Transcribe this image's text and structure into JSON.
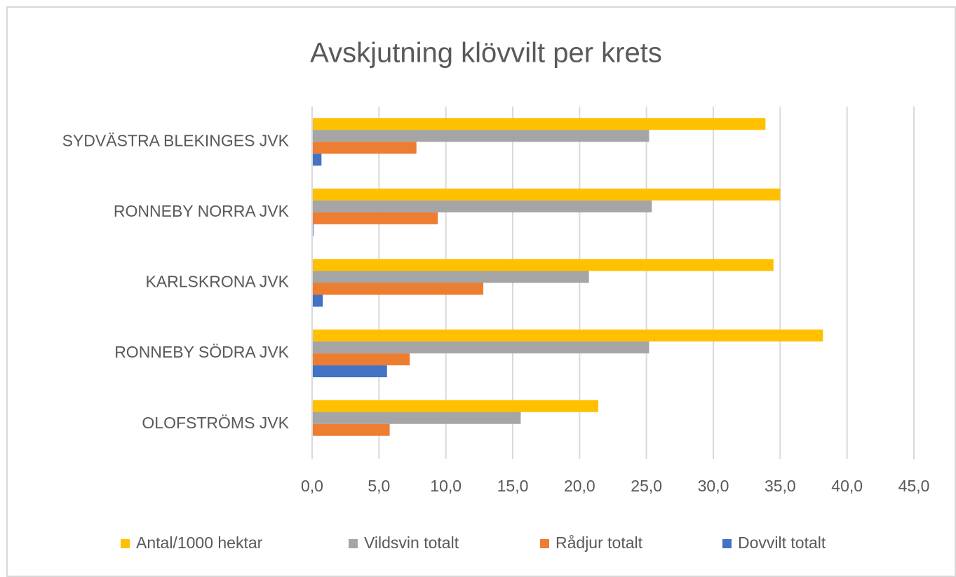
{
  "chart_data": {
    "type": "bar",
    "orientation": "horizontal",
    "title": "Avskjutning klövvilt per krets",
    "categories": [
      "SYDVÄSTRA BLEKINGES JVK",
      "RONNEBY NORRA JVK",
      "KARLSKRONA JVK",
      "RONNEBY SÖDRA JVK",
      "OLOFSTRÖMS JVK"
    ],
    "series": [
      {
        "name": "Antal/1000 hektar",
        "color": "#ffc000",
        "values": [
          33.9,
          35.0,
          34.5,
          38.2,
          21.4
        ]
      },
      {
        "name": "Vildsvin totalt",
        "color": "#a5a5a5",
        "values": [
          25.2,
          25.4,
          20.7,
          25.2,
          15.6
        ]
      },
      {
        "name": "Rådjur totalt",
        "color": "#ed7d31",
        "values": [
          7.8,
          9.4,
          12.8,
          7.3,
          5.8
        ]
      },
      {
        "name": "Dovvilt totalt",
        "color": "#4472c4",
        "values": [
          0.7,
          0.1,
          0.8,
          5.6,
          0
        ]
      }
    ],
    "xlim": [
      0,
      45
    ],
    "xticks": [
      {
        "value": 0,
        "label": "0,0"
      },
      {
        "value": 5,
        "label": "5,0"
      },
      {
        "value": 10,
        "label": "10,0"
      },
      {
        "value": 15,
        "label": "15,0"
      },
      {
        "value": 20,
        "label": "20,0"
      },
      {
        "value": 25,
        "label": "25,0"
      },
      {
        "value": 30,
        "label": "30,0"
      },
      {
        "value": 35,
        "label": "35,0"
      },
      {
        "value": 40,
        "label": "40,0"
      },
      {
        "value": 45,
        "label": "45,0"
      }
    ],
    "grid": true,
    "legend": "bottom"
  }
}
